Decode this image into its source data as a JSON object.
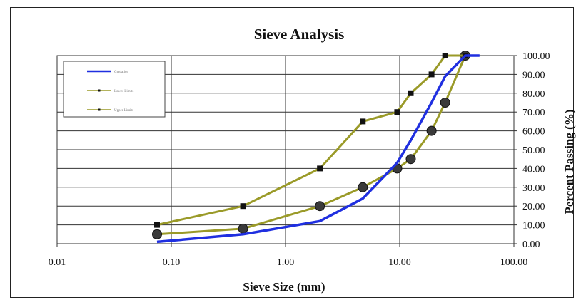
{
  "chart_data": {
    "type": "line",
    "title": "Sieve Analysis",
    "xlabel": "Sieve Size (mm)",
    "ylabel": "Percent Passing (%)",
    "x_scale": "log",
    "xlim": [
      0.01,
      100
    ],
    "ylim": [
      0,
      100
    ],
    "x_ticks": [
      "0.01",
      "0.10",
      "1.00",
      "10.00",
      "100.00"
    ],
    "y_ticks": [
      "0.00",
      "10.00",
      "20.00",
      "30.00",
      "40.00",
      "50.00",
      "60.00",
      "70.00",
      "80.00",
      "90.00",
      "100.00"
    ],
    "y_axis_side": "right",
    "grid": true,
    "legend": "top-left",
    "series": [
      {
        "name": "Gradation",
        "color": "#1f2fe0",
        "marker": "none",
        "x": [
          0.075,
          0.425,
          2.0,
          4.75,
          9.5,
          12.5,
          19.0,
          25.0,
          37.5,
          50.0
        ],
        "y": [
          1,
          5,
          12,
          24,
          43,
          55,
          75,
          89,
          100,
          100
        ]
      },
      {
        "name": "Lower Limits",
        "color": "#9a9a28",
        "marker": "circle",
        "x": [
          0.075,
          0.425,
          2.0,
          4.75,
          9.5,
          12.5,
          19.0,
          25.0,
          37.5
        ],
        "y": [
          5,
          8,
          20,
          30,
          40,
          45,
          60,
          75,
          100
        ]
      },
      {
        "name": "Upper Limits",
        "color": "#9a9a28",
        "marker": "square",
        "x": [
          0.075,
          0.425,
          2.0,
          4.75,
          9.5,
          12.5,
          19.0,
          25.0,
          37.5
        ],
        "y": [
          10,
          20,
          40,
          65,
          70,
          80,
          90,
          100,
          100
        ]
      }
    ]
  }
}
